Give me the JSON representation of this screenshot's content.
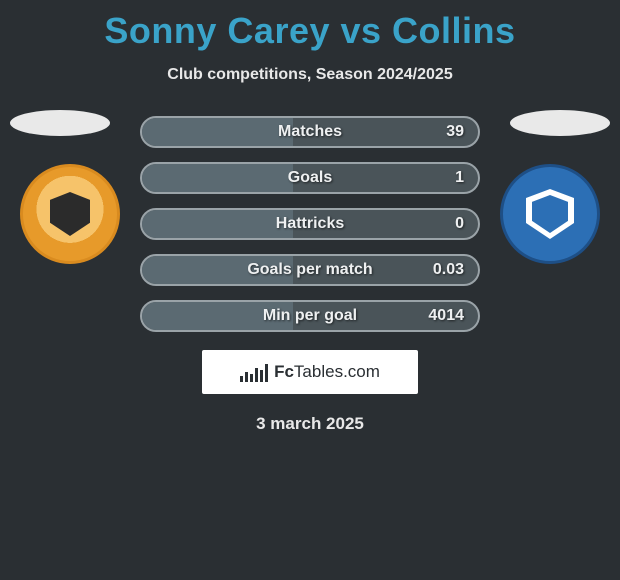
{
  "title": "Sonny Carey vs Collins",
  "subtitle": "Club competitions, Season 2024/2025",
  "date": "3 march 2025",
  "logo_text_prefix": "Fc",
  "logo_text_main": "Tables",
  "logo_text_suffix": ".com",
  "colors": {
    "background": "#2a2f33",
    "title": "#3aa3c9",
    "text": "#e8e8e8",
    "bar_bg": "#4a5459",
    "bar_border": "#9aa3a8",
    "bar_fill": "#5b6a72",
    "ellipse": "#e9e9e9",
    "logo_box": "#ffffff"
  },
  "clubs": {
    "left": {
      "name": "blackpool-fc",
      "primary": "#f6c36a",
      "secondary": "#e79a2a"
    },
    "right": {
      "name": "peterborough-united",
      "primary": "#2c6fb5",
      "secondary": "#1e4f86"
    }
  },
  "stats": [
    {
      "label": "Matches",
      "value": "39",
      "fill_pct": 45
    },
    {
      "label": "Goals",
      "value": "1",
      "fill_pct": 45
    },
    {
      "label": "Hattricks",
      "value": "0",
      "fill_pct": 45
    },
    {
      "label": "Goals per match",
      "value": "0.03",
      "fill_pct": 45
    },
    {
      "label": "Min per goal",
      "value": "4014",
      "fill_pct": 45
    }
  ],
  "logo_bar_heights": [
    6,
    10,
    8,
    14,
    12,
    18
  ]
}
